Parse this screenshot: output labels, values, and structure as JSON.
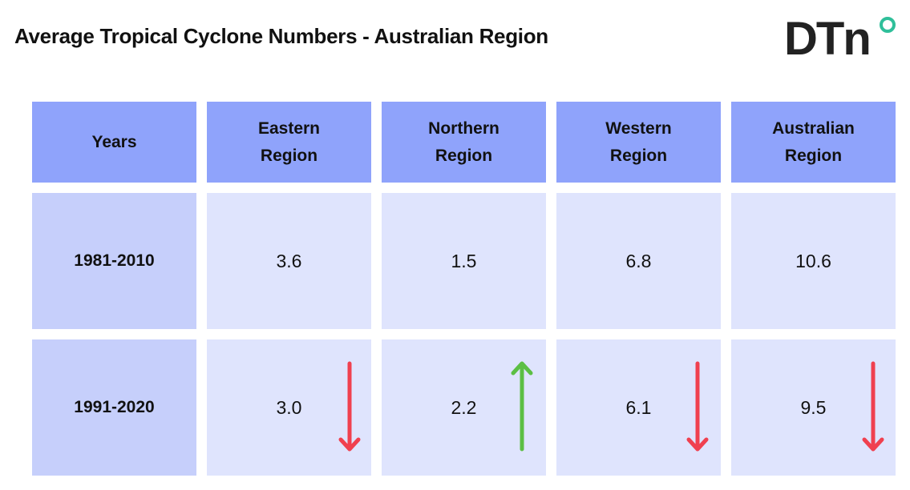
{
  "header": {
    "title": "Average Tropical Cyclone Numbers - Australian Region",
    "logo": "DTn"
  },
  "table": {
    "columns": [
      "Years",
      "Eastern Region",
      "Northern Region",
      "Western Region",
      "Australian Region"
    ],
    "rows": [
      [
        "1981-2010",
        "3.6",
        "1.5",
        "6.8",
        "10.6"
      ],
      [
        "1991-2020",
        "3.0",
        "2.2",
        "6.1",
        "9.5"
      ]
    ]
  }
}
